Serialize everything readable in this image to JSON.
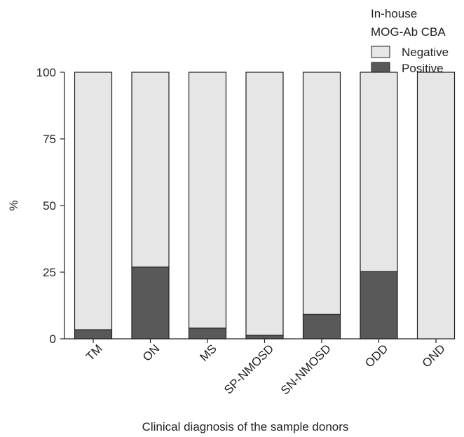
{
  "chart_data": {
    "type": "bar",
    "stacked": true,
    "categories": [
      "TM",
      "ON",
      "MS",
      "SP-NMOSD",
      "SN-NMOSD",
      "ODD",
      "OND"
    ],
    "series": [
      {
        "name": "Positive",
        "values": [
          3.4,
          26.9,
          4.0,
          1.3,
          9.1,
          25.2,
          0
        ],
        "color": "#595959"
      },
      {
        "name": "Negative",
        "values": [
          96.6,
          73.1,
          96.0,
          98.7,
          90.9,
          74.8,
          100
        ],
        "color": "#e6e6e6"
      }
    ],
    "ylabel": "%",
    "xlabel": "Clinical diagnosis of the sample donors",
    "ylim": [
      0,
      100
    ],
    "yticks": [
      "0",
      "25",
      "50",
      "75",
      "100"
    ],
    "grid": false,
    "legend": {
      "title_line1": "In-house",
      "title_line2": "MOG-Ab CBA",
      "placement": "top-right",
      "items": [
        "Negative",
        "Positive"
      ]
    }
  }
}
